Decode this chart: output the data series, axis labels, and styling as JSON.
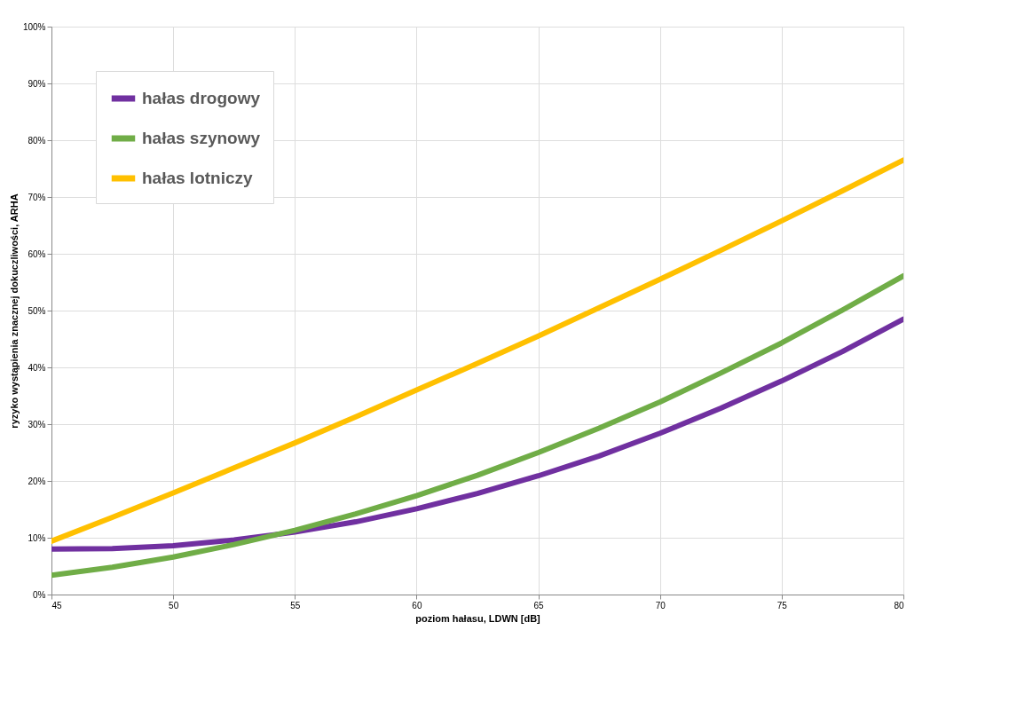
{
  "chart_data": {
    "type": "line",
    "xlabel": "poziom hałasu, LDWN [dB]",
    "ylabel": "ryzyko wystąpienia znacznej dokuczliwości, ARHA",
    "x": [
      45,
      47.5,
      50,
      52.5,
      55,
      57.5,
      60,
      62.5,
      65,
      67.5,
      70,
      72.5,
      75,
      77.5,
      80
    ],
    "series": [
      {
        "name": "hałas drogowy",
        "color": "#7030a0",
        "values": [
          8.0,
          8.1,
          8.6,
          9.6,
          11.0,
          12.8,
          15.1,
          17.8,
          20.9,
          24.4,
          28.4,
          32.8,
          37.6,
          42.8,
          48.5
        ]
      },
      {
        "name": "hałas szynowy",
        "color": "#70ad47",
        "values": [
          3.4,
          4.8,
          6.6,
          8.8,
          11.3,
          14.2,
          17.4,
          21.0,
          25.0,
          29.3,
          33.9,
          39.0,
          44.3,
          50.1,
          56.1
        ]
      },
      {
        "name": "hałas lotniczy",
        "color": "#ffc000",
        "values": [
          9.4,
          13.6,
          17.9,
          22.3,
          26.7,
          31.3,
          36.0,
          40.7,
          45.5,
          50.5,
          55.5,
          60.6,
          65.8,
          71.1,
          76.5
        ]
      }
    ],
    "xlim": [
      45,
      80
    ],
    "xticks": [
      45,
      50,
      55,
      60,
      65,
      70,
      75,
      80
    ],
    "ylim": [
      0,
      100
    ],
    "yticks": [
      {
        "value": 0,
        "label": "0%"
      },
      {
        "value": 10,
        "label": "10%"
      },
      {
        "value": 20,
        "label": "20%"
      },
      {
        "value": 30,
        "label": "30%"
      },
      {
        "value": 40,
        "label": "40%"
      },
      {
        "value": 50,
        "label": "50%"
      },
      {
        "value": 60,
        "label": "60%"
      },
      {
        "value": 70,
        "label": "70%"
      },
      {
        "value": 80,
        "label": "80%"
      },
      {
        "value": 90,
        "label": "90%"
      },
      {
        "value": 100,
        "label": "100%"
      }
    ],
    "grid": true,
    "legend": "top left",
    "marker": "none",
    "line_style": "solid"
  }
}
